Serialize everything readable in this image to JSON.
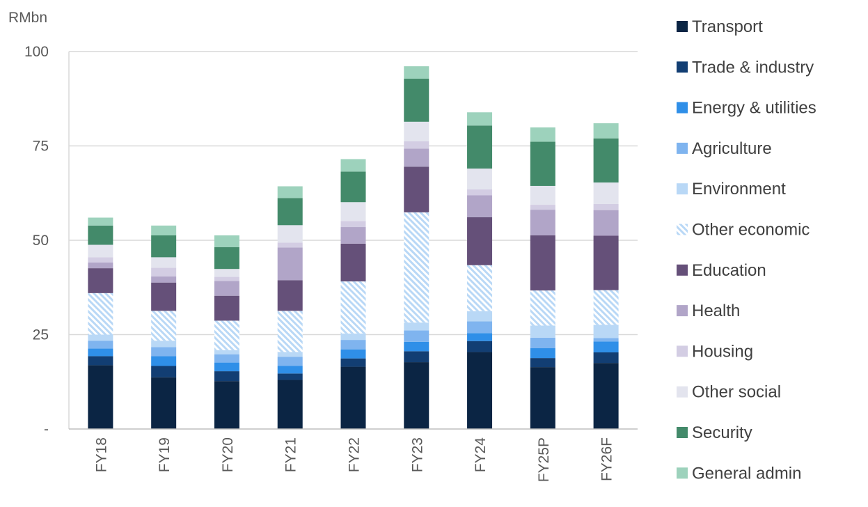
{
  "chart_data": {
    "type": "bar",
    "stacked": true,
    "ylabel": "RMbn",
    "ylim": [
      0,
      100
    ],
    "yticks": [
      {
        "value": 0,
        "label": "-"
      },
      {
        "value": 25,
        "label": "25"
      },
      {
        "value": 50,
        "label": "50"
      },
      {
        "value": 75,
        "label": "75"
      },
      {
        "value": 100,
        "label": "100"
      }
    ],
    "grid": true,
    "legend_position": "right",
    "categories": [
      "FY18",
      "FY19",
      "FY20",
      "FY21",
      "FY22",
      "FY23",
      "FY24",
      "FY25P",
      "FY26F"
    ],
    "series": [
      {
        "name": "Transport",
        "color": "#0b2544",
        "pattern": "solid",
        "values": [
          16.9,
          13.7,
          12.7,
          13.0,
          16.5,
          17.7,
          20.4,
          16.4,
          17.5
        ]
      },
      {
        "name": "Trade & industry",
        "color": "#123e73",
        "pattern": "solid",
        "values": [
          2.4,
          3.0,
          2.6,
          1.7,
          2.2,
          2.9,
          2.9,
          2.4,
          2.8
        ]
      },
      {
        "name": "Energy & utilities",
        "color": "#2f8fe8",
        "pattern": "solid",
        "values": [
          2.0,
          2.6,
          2.3,
          2.0,
          2.4,
          2.5,
          2.1,
          2.6,
          2.9
        ]
      },
      {
        "name": "Agriculture",
        "color": "#7fb4ef",
        "pattern": "solid",
        "values": [
          2.1,
          2.4,
          2.2,
          2.4,
          2.5,
          3.0,
          3.1,
          2.8,
          0.9
        ]
      },
      {
        "name": "Environment",
        "color": "#b9d8f6",
        "pattern": "solid",
        "values": [
          1.6,
          1.7,
          1.1,
          1.3,
          1.7,
          2.1,
          2.7,
          3.2,
          3.5
        ]
      },
      {
        "name": "Other economic",
        "color": "#b9d8f6",
        "pattern": "hatch",
        "values": [
          11.0,
          7.9,
          7.8,
          10.9,
          13.8,
          29.2,
          12.2,
          9.3,
          9.2
        ]
      },
      {
        "name": "Education",
        "color": "#655079",
        "pattern": "solid",
        "values": [
          6.6,
          7.5,
          6.6,
          8.1,
          10.0,
          12.1,
          12.7,
          14.6,
          14.4
        ]
      },
      {
        "name": "Health",
        "color": "#b1a5c8",
        "pattern": "solid",
        "values": [
          1.5,
          1.6,
          3.9,
          8.7,
          4.4,
          4.8,
          5.8,
          6.8,
          6.8
        ]
      },
      {
        "name": "Housing",
        "color": "#d3cde3",
        "pattern": "solid",
        "values": [
          1.4,
          2.3,
          1.1,
          1.3,
          1.6,
          1.9,
          1.6,
          1.3,
          1.6
        ]
      },
      {
        "name": "Other social",
        "color": "#e3e4ee",
        "pattern": "solid",
        "values": [
          3.3,
          2.8,
          2.1,
          4.6,
          5.0,
          5.2,
          5.5,
          5.0,
          5.7
        ]
      },
      {
        "name": "Security",
        "color": "#438a6a",
        "pattern": "solid",
        "values": [
          5.1,
          5.8,
          5.8,
          7.2,
          8.1,
          11.4,
          11.4,
          11.7,
          11.7
        ]
      },
      {
        "name": "General admin",
        "color": "#9dd2bc",
        "pattern": "solid",
        "values": [
          2.1,
          2.6,
          3.1,
          3.1,
          3.3,
          3.3,
          3.5,
          3.8,
          4.0
        ]
      }
    ]
  }
}
